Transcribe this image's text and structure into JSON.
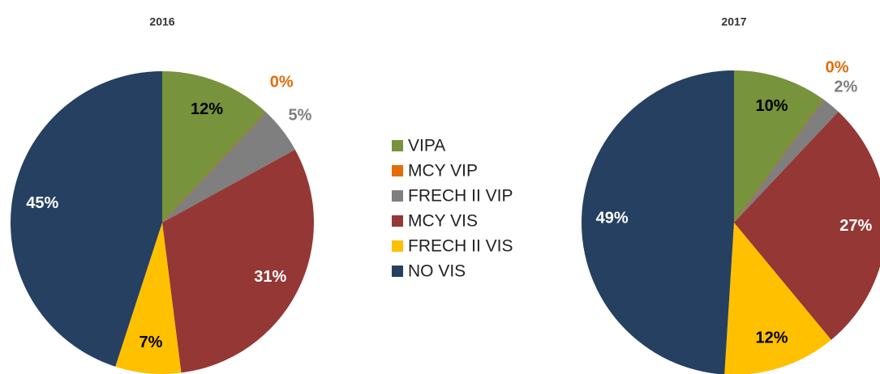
{
  "chart_data": [
    {
      "type": "pie",
      "title": "2016",
      "categories": [
        "VIPA",
        "MCY VIP",
        "FRECH II VIP",
        "MCY VIS",
        "FRECH II VIS",
        "NO VIS"
      ],
      "values": [
        12,
        0,
        5,
        31,
        7,
        45
      ],
      "value_labels": [
        "12%",
        "0%",
        "5%",
        "31%",
        "7%",
        "45%"
      ],
      "colors": [
        "#77933c",
        "#e36c09",
        "#7f7f7f",
        "#953735",
        "#ffc000",
        "#254061"
      ],
      "legend": "right"
    },
    {
      "type": "pie",
      "title": "2017",
      "categories": [
        "VIPA",
        "MCY VIP",
        "FRECH II VIP",
        "MCY VIS",
        "FRECH II VIS",
        "NO VIS"
      ],
      "values": [
        10,
        0,
        2,
        27,
        12,
        49
      ],
      "value_labels": [
        "10%",
        "0%",
        "2%",
        "27%",
        "12%",
        "49%"
      ],
      "colors": [
        "#77933c",
        "#e36c09",
        "#7f7f7f",
        "#953735",
        "#ffc000",
        "#254061"
      ]
    }
  ]
}
